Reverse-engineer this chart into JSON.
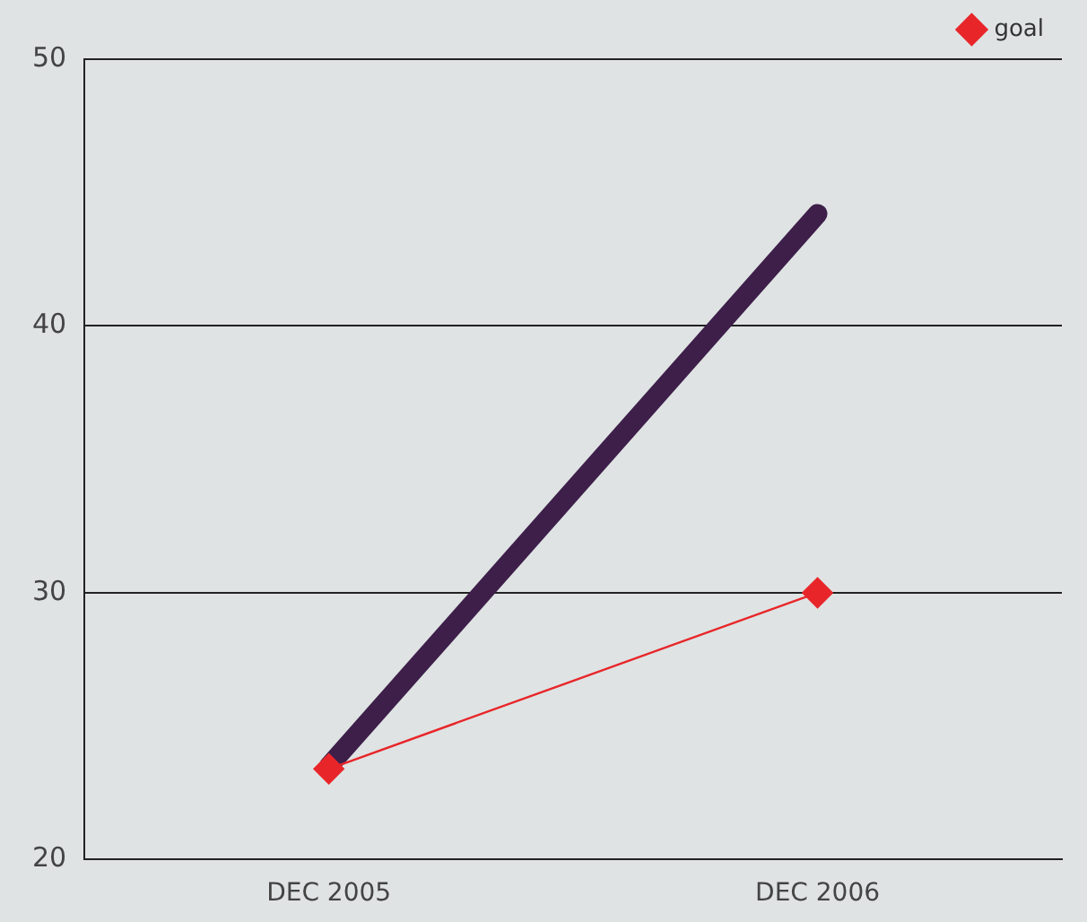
{
  "chart_data": {
    "type": "line",
    "categories": [
      "DEC 2005",
      "DEC 2006"
    ],
    "series": [
      {
        "color": "#3d1f4a",
        "values": [
          23.5,
          44.2
        ],
        "marker": "none"
      },
      {
        "name": "goal",
        "color": "#e8262a",
        "values": [
          23.4,
          30
        ],
        "marker": "diamond"
      }
    ],
    "ylim": [
      20,
      50
    ],
    "yticks": [
      20,
      30,
      40,
      50
    ],
    "grid": "y",
    "legend": "top right"
  }
}
